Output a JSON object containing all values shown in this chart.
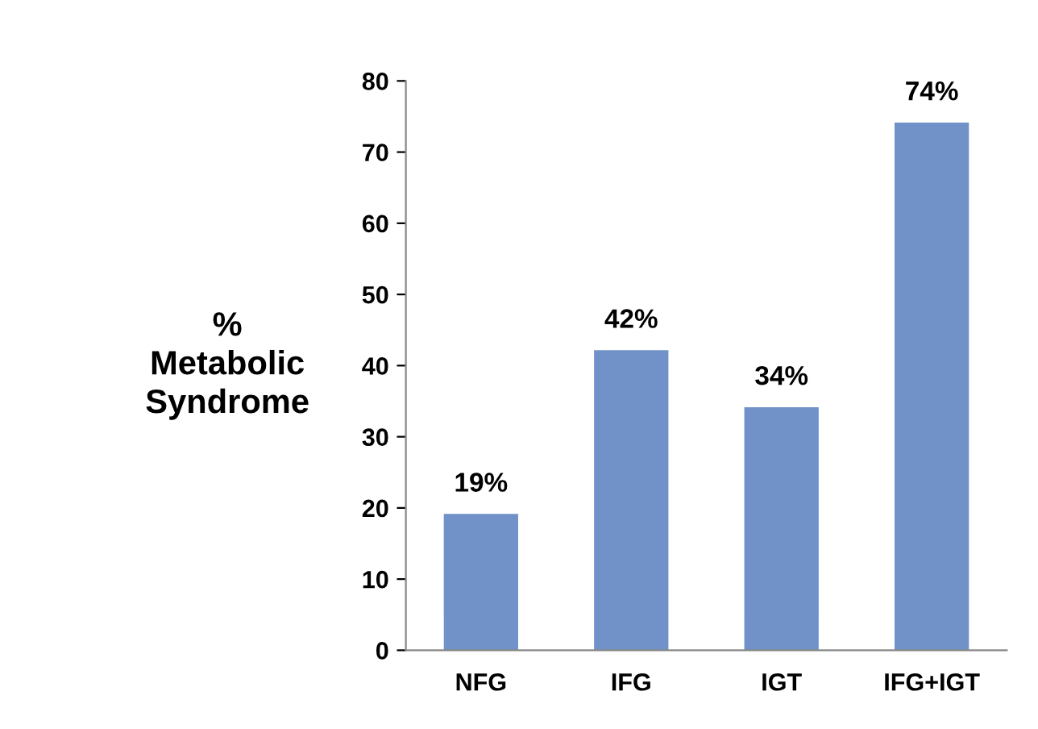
{
  "chart_data": {
    "type": "bar",
    "ylabel": "%\nMetabolic\nSyndrome",
    "categories": [
      "NFG",
      "IFG",
      "IGT",
      "IFG+IGT"
    ],
    "values": [
      19,
      42,
      34,
      74
    ],
    "value_labels": [
      "19%",
      "42%",
      "34%",
      "74%"
    ],
    "color": "#7092c8",
    "ylim": [
      0,
      80
    ],
    "yticks": [
      0,
      10,
      20,
      30,
      40,
      50,
      60,
      70,
      80
    ],
    "grid": false,
    "legend": false
  }
}
